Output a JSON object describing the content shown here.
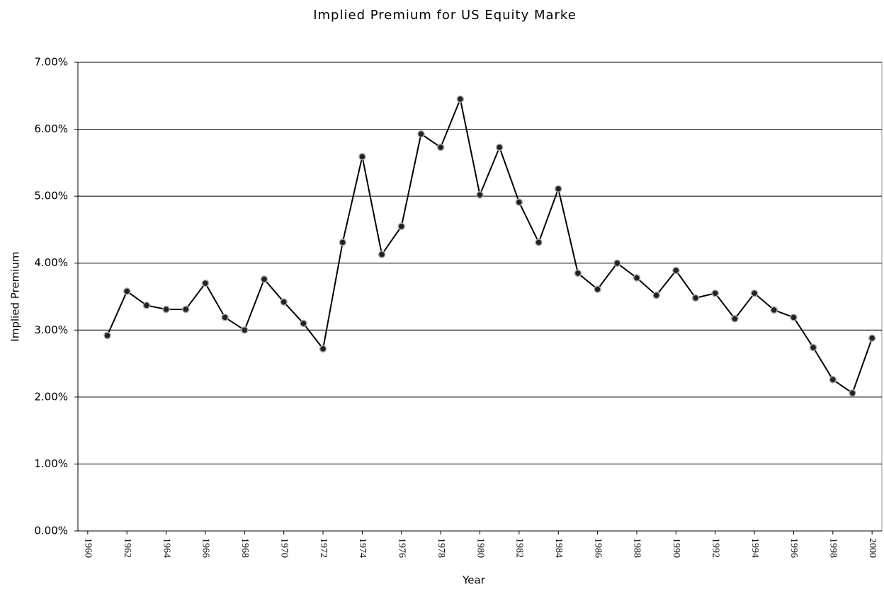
{
  "chart_data": {
    "type": "line",
    "title": "Implied Premium for US Equity Marke",
    "x_label": "Year",
    "y_label": "Implied Premium",
    "x": [
      1961,
      1962,
      1963,
      1964,
      1965,
      1966,
      1967,
      1968,
      1969,
      1970,
      1971,
      1972,
      1973,
      1974,
      1975,
      1976,
      1977,
      1978,
      1979,
      1980,
      1981,
      1982,
      1983,
      1984,
      1985,
      1986,
      1987,
      1988,
      1989,
      1990,
      1991,
      1992,
      1993,
      1994,
      1995,
      1996,
      1997,
      1998,
      1999,
      2000
    ],
    "series": [
      {
        "color": "#000000",
        "marker_color": "#222222",
        "values": [
          2.92,
          3.58,
          3.37,
          3.31,
          3.31,
          3.7,
          3.19,
          3.0,
          3.76,
          3.42,
          3.1,
          2.72,
          4.31,
          5.59,
          4.13,
          4.55,
          5.93,
          5.73,
          6.45,
          5.02,
          5.73,
          4.91,
          4.31,
          5.11,
          3.85,
          3.61,
          4.0,
          3.78,
          3.52,
          3.89,
          3.48,
          3.55,
          3.17,
          3.55,
          3.3,
          3.19,
          2.74,
          2.26,
          2.06,
          2.88
        ]
      }
    ],
    "xlim": [
      1959.5,
      2000.5
    ],
    "xticks": [
      1960,
      1962,
      1964,
      1966,
      1968,
      1970,
      1972,
      1974,
      1976,
      1978,
      1980,
      1982,
      1984,
      1986,
      1988,
      1990,
      1992,
      1994,
      1996,
      1998,
      2000
    ],
    "ylim": [
      0,
      7
    ],
    "yticks": [
      {
        "value": 0,
        "label": "0.00%"
      },
      {
        "value": 1,
        "label": "1.00%"
      },
      {
        "value": 2,
        "label": "2.00%"
      },
      {
        "value": 3,
        "label": "3.00%"
      },
      {
        "value": 4,
        "label": "4.00%"
      },
      {
        "value": 5,
        "label": "5.00%"
      },
      {
        "value": 6,
        "label": "6.00%"
      },
      {
        "value": 7,
        "label": "7.00%"
      }
    ],
    "grid": true
  }
}
